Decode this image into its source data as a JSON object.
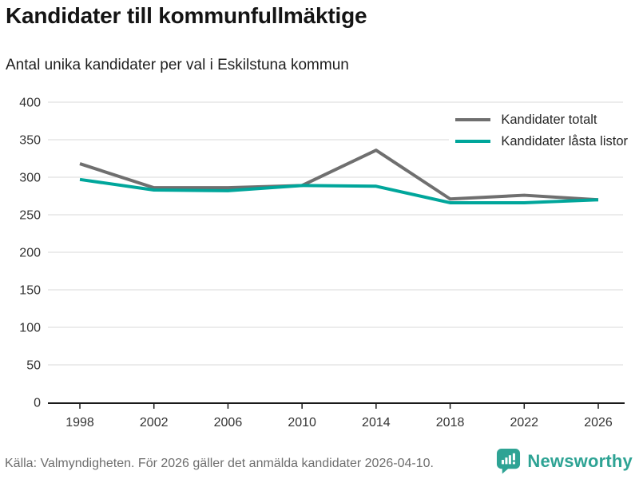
{
  "header": {
    "title": "Kandidater till kommunfullmäktige",
    "subtitle": "Antal unika kandidater per val i Eskilstuna kommun"
  },
  "chart_data": {
    "type": "line",
    "title": "Kandidater till kommunfullmäktige",
    "subtitle": "Antal unika kandidater per val i Eskilstuna kommun",
    "x": [
      1998,
      2002,
      2006,
      2010,
      2014,
      2018,
      2022,
      2026
    ],
    "series": [
      {
        "name": "Kandidater totalt",
        "color": "#6f6f6f",
        "values": [
          318,
          286,
          286,
          289,
          336,
          271,
          276,
          270
        ]
      },
      {
        "name": "Kandidater låsta listor",
        "color": "#00a69b",
        "values": [
          297,
          283,
          282,
          289,
          288,
          266,
          266,
          270
        ]
      }
    ],
    "xlabel": "",
    "ylabel": "",
    "xlim": [
      1998,
      2026
    ],
    "ylim": [
      0,
      400
    ],
    "yticks": [
      0,
      50,
      100,
      150,
      200,
      250,
      300,
      350,
      400
    ],
    "xticks": [
      1998,
      2002,
      2006,
      2010,
      2014,
      2018,
      2022,
      2026
    ],
    "grid": true,
    "legend_position": "top-right"
  },
  "legend": {
    "items": [
      {
        "label": "Kandidater totalt"
      },
      {
        "label": "Kandidater låsta listor"
      }
    ]
  },
  "footer": {
    "source": "Källa: Valmyndigheten. För 2026 gäller det anmälda kandidater 2026-04-10.",
    "brand": "Newsworthy"
  },
  "colors": {
    "series_gray": "#6f6f6f",
    "series_teal": "#00a69b",
    "grid": "#e1e1e1",
    "axis": "#1a1a1a",
    "tick_text": "#333333",
    "muted_text": "#6e6e6e",
    "brand_teal": "#2ea394"
  }
}
